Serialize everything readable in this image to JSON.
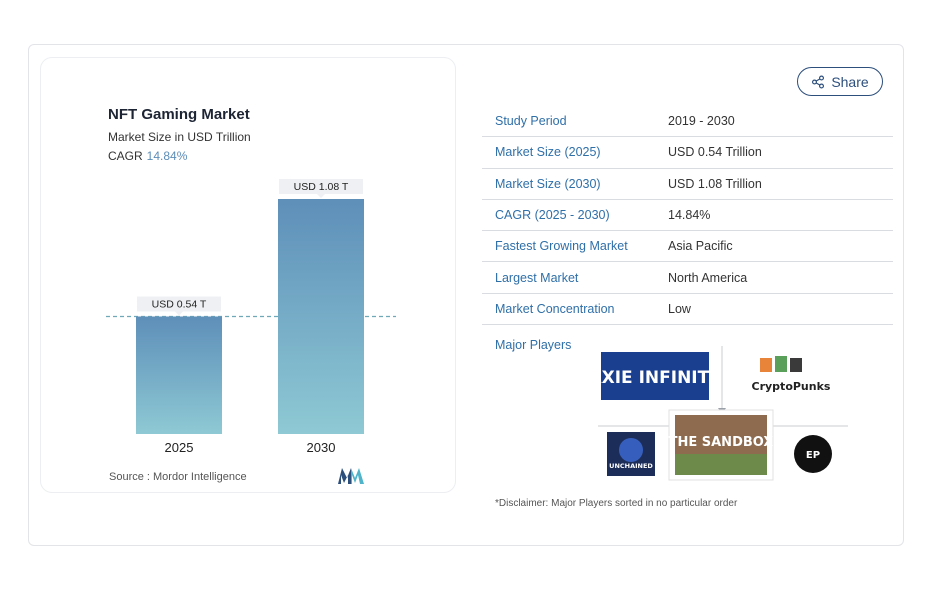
{
  "chart": {
    "title": "NFT Gaming Market",
    "subtitle": "Market Size in USD Trillion",
    "cagr_label": "CAGR",
    "cagr_value": "14.84%",
    "source": "Source : Mordor Intelligence"
  },
  "chart_data": {
    "type": "bar",
    "categories": [
      "2025",
      "2030"
    ],
    "values": [
      0.54,
      1.08
    ],
    "data_labels": [
      "USD 0.54 T",
      "USD 1.08 T"
    ],
    "title": "NFT Gaming Market",
    "subtitle": "Market Size in USD Trillion",
    "ylim": [
      0,
      1.08
    ],
    "grid": false,
    "reference_line": 0.54,
    "colors": {
      "bar_top": "#5e8fb9",
      "bar_bottom": "#8ec9d4",
      "reference_line": "#6fa9b8"
    }
  },
  "share": {
    "label": "Share",
    "icon": "share-icon"
  },
  "table": {
    "rows": [
      {
        "label": "Study Period",
        "value": "2019 - 2030"
      },
      {
        "label": "Market Size (2025)",
        "value": "USD 0.54 Trillion"
      },
      {
        "label": "Market Size (2030)",
        "value": "USD 1.08 Trillion"
      },
      {
        "label": "CAGR (2025 - 2030)",
        "value": "14.84%"
      },
      {
        "label": "Fastest Growing Market",
        "value": "Asia Pacific"
      },
      {
        "label": "Largest Market",
        "value": "North America"
      },
      {
        "label": "Market Concentration",
        "value": "Low"
      }
    ]
  },
  "players": {
    "label": "Major Players",
    "logos": [
      "AXIE INFINITY",
      "CryptoPunks",
      "UNCHAINED",
      "THE SANDBOX",
      "EP"
    ]
  },
  "disclaimer": "*Disclaimer: Major Players sorted in no particular order",
  "colors": {
    "label_blue": "#2f6fa8",
    "share_navy": "#2d4f7c",
    "cagr_accent": "#5b8db8"
  }
}
